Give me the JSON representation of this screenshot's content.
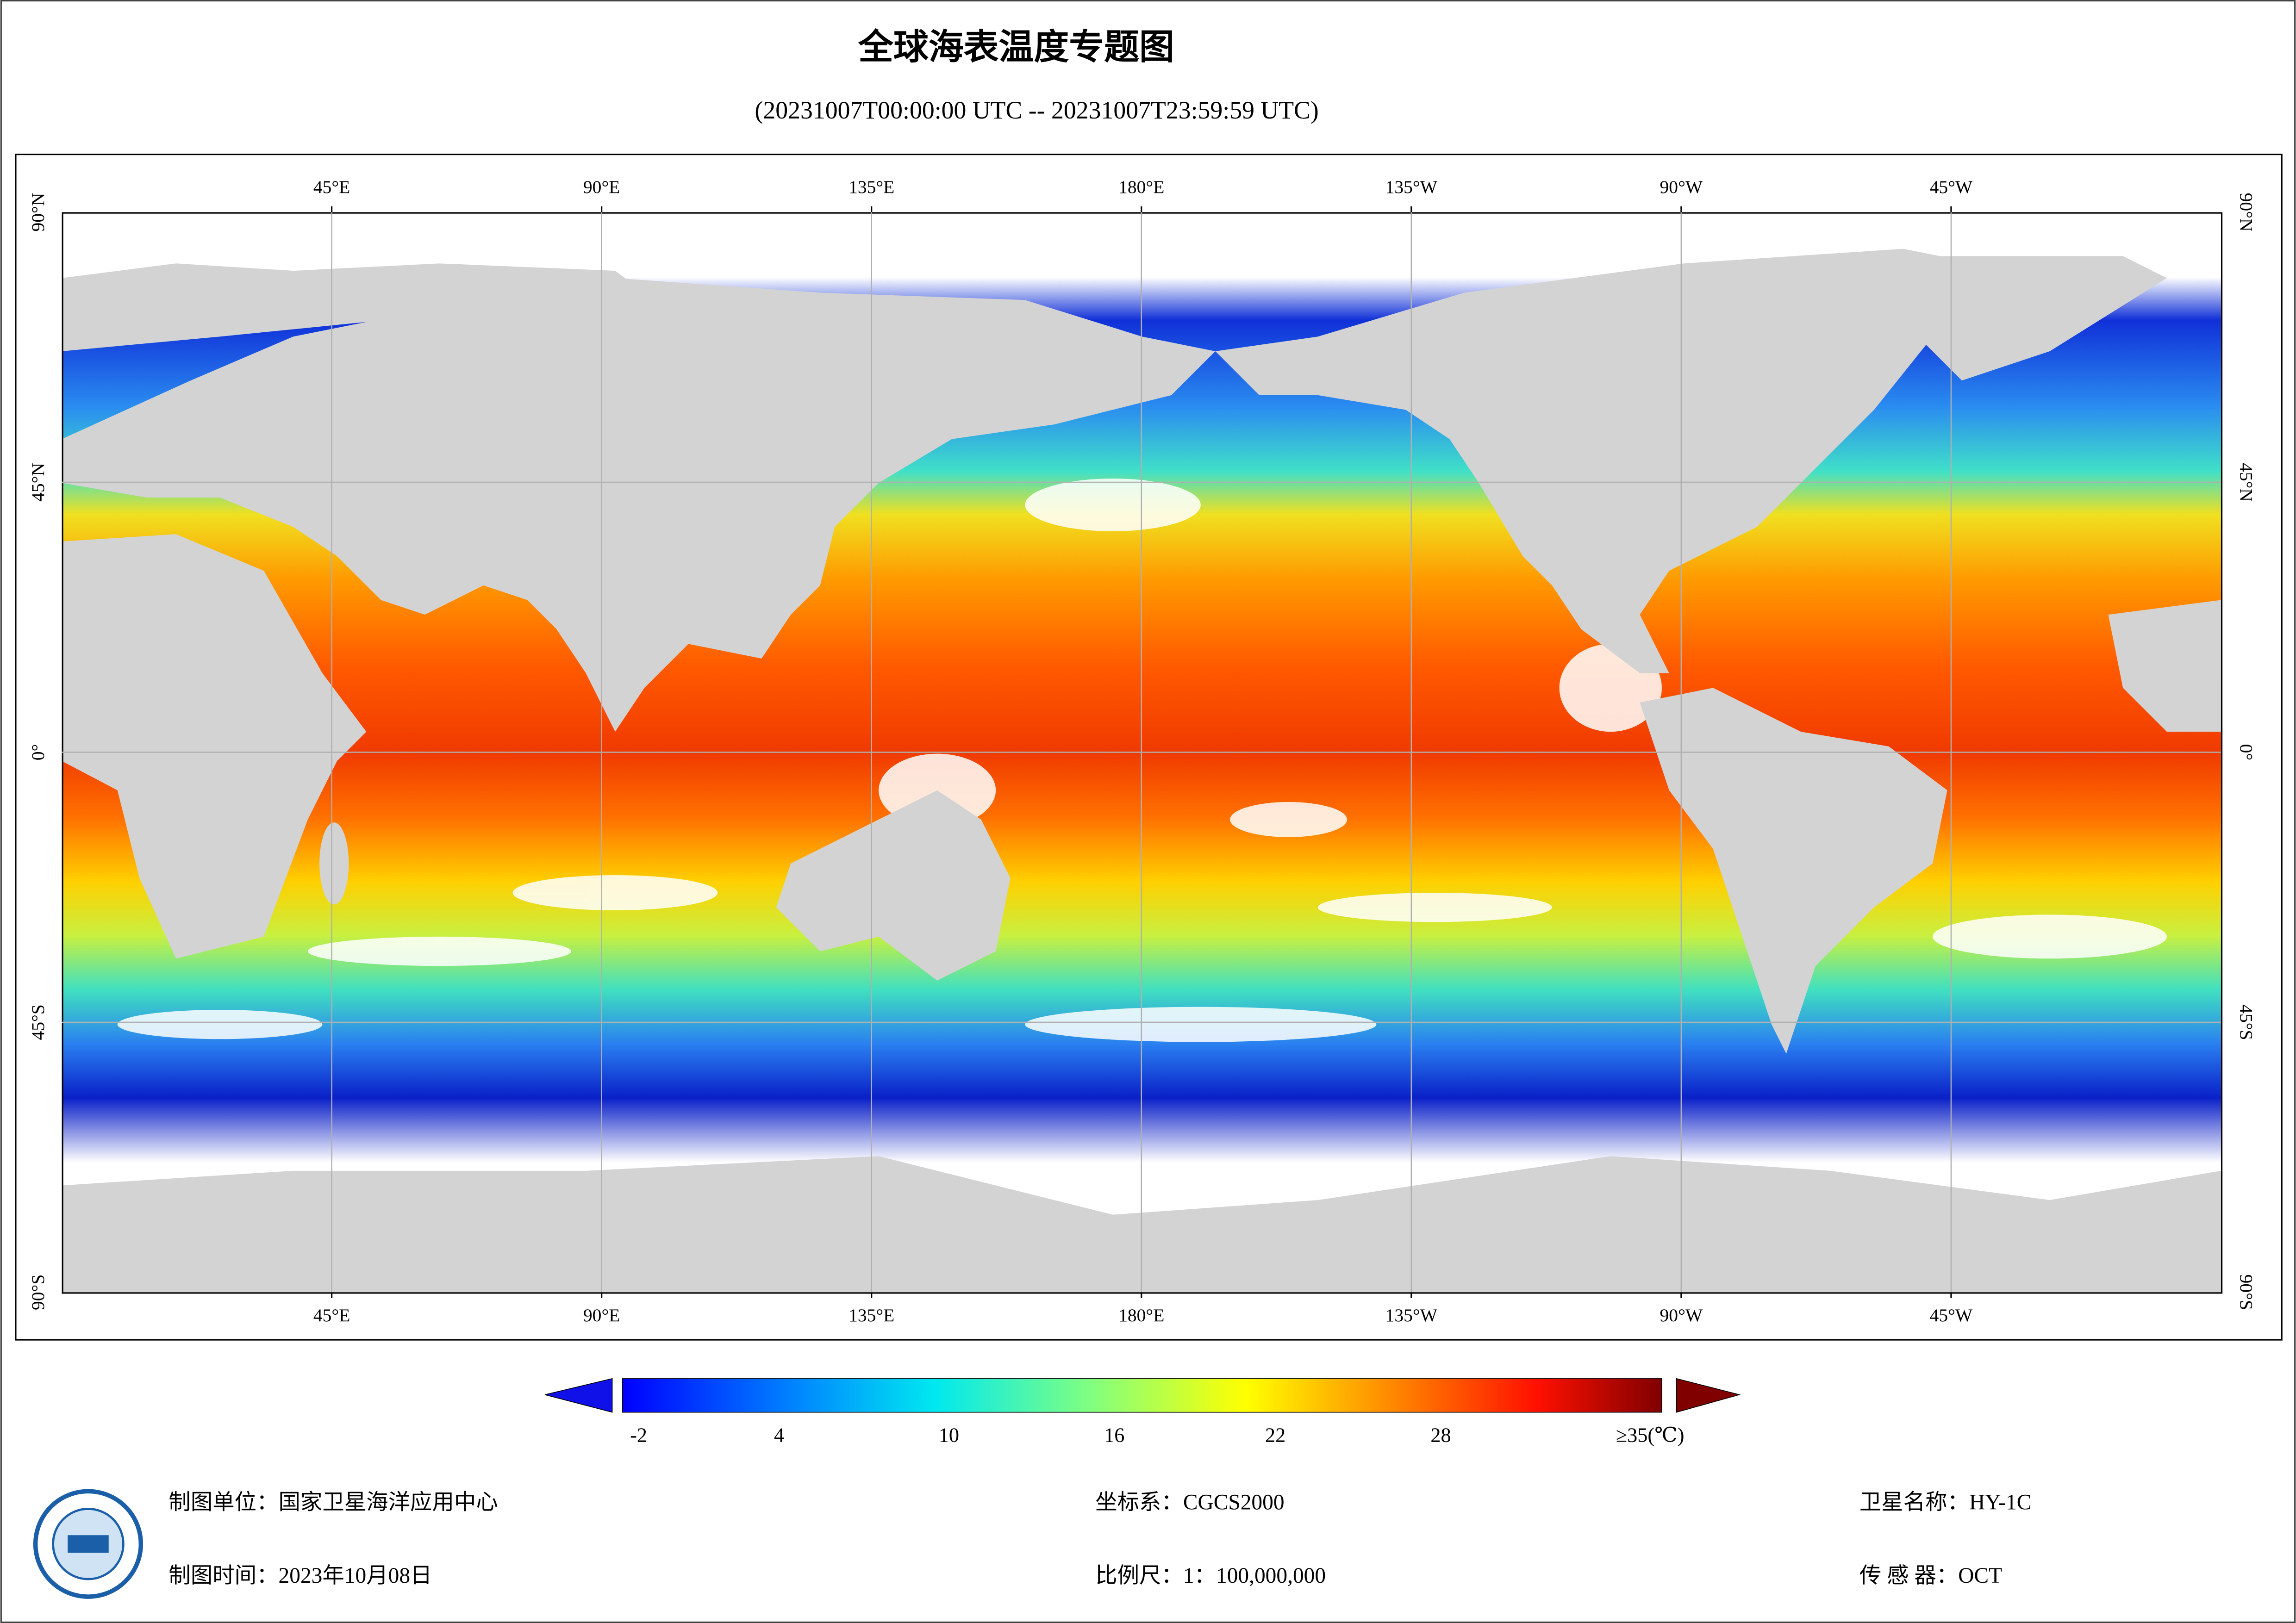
{
  "header": {
    "title": "全球海表温度专题图",
    "subtitle": "(20231007T00:00:00 UTC -- 20231007T23:59:59 UTC)"
  },
  "map": {
    "lon_labels": [
      "45°E",
      "90°E",
      "135°E",
      "180°E",
      "135°W",
      "90°W",
      "45°W"
    ],
    "lat_labels": [
      "90°N",
      "45°N",
      "0°",
      "45°S",
      "90°S"
    ]
  },
  "legend": {
    "tick_labels": [
      "-2",
      "4",
      "10",
      "16",
      "22",
      "28",
      "≥35(℃)"
    ]
  },
  "footer": {
    "left": [
      "制图单位：国家卫星海洋应用中心",
      "制图时间：2023年10月08日"
    ],
    "middle": [
      "坐标系：CGCS2000",
      "比例尺：1：100,000,000"
    ],
    "right": [
      "卫星名称：HY-1C",
      "传 感 器：OCT"
    ]
  }
}
